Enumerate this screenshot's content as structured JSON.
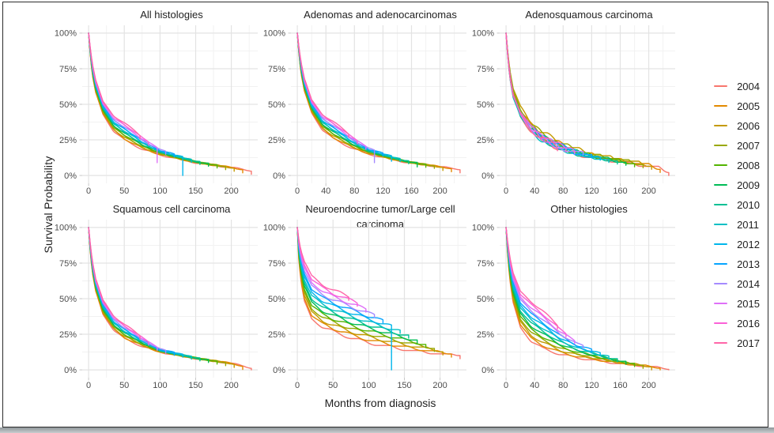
{
  "window": {
    "frame_border_color": "#2c2c2c",
    "bottom_edge_color": "#9aa0a4"
  },
  "chart_data": {
    "type": "line",
    "subtype": "kaplan-meier-survival-curves",
    "ylabel": "Survival Probability",
    "xlabel": "Months from diagnosis",
    "ylim": [
      0,
      100
    ],
    "xlim": [
      0,
      232
    ],
    "grid": true,
    "y_ticks": [
      0,
      25,
      50,
      75,
      100
    ],
    "y_tick_labels": [
      "0%",
      "25%",
      "50%",
      "75%",
      "100%"
    ],
    "legend_position": "right",
    "legend": {
      "entries": [
        {
          "label": "2004",
          "color": "#F8766D"
        },
        {
          "label": "2005",
          "color": "#E38900"
        },
        {
          "label": "2006",
          "color": "#C49A00"
        },
        {
          "label": "2007",
          "color": "#99A800"
        },
        {
          "label": "2008",
          "color": "#53B400"
        },
        {
          "label": "2009",
          "color": "#00BC56"
        },
        {
          "label": "2010",
          "color": "#00C094"
        },
        {
          "label": "2011",
          "color": "#00BFC4"
        },
        {
          "label": "2012",
          "color": "#00B6EB"
        },
        {
          "label": "2013",
          "color": "#06A4FF"
        },
        {
          "label": "2014",
          "color": "#A58AFF"
        },
        {
          "label": "2015",
          "color": "#DF70F8"
        },
        {
          "label": "2016",
          "color": "#FB61D7"
        },
        {
          "label": "2017",
          "color": "#FF66A8"
        }
      ]
    },
    "years": [
      2004,
      2005,
      2006,
      2007,
      2008,
      2009,
      2010,
      2011,
      2012,
      2013,
      2014,
      2015,
      2016,
      2017
    ],
    "end_month_by_year": [
      228,
      216,
      204,
      192,
      180,
      168,
      156,
      144,
      132,
      120,
      108,
      96,
      84,
      72
    ],
    "anchor_months": [
      0,
      2,
      5,
      10,
      20,
      35,
      50,
      75,
      100,
      150,
      200,
      228
    ],
    "encoding": "survival % anchors for earliest (2004) and latest (2017) cohorts; intermediate years interpolate between them by year weight",
    "panels": [
      {
        "title": "All histologies",
        "x_ticks": [
          0,
          50,
          100,
          150,
          200
        ],
        "survival_2004": [
          100,
          87,
          71,
          58,
          43,
          31,
          25,
          18.5,
          14.5,
          9,
          5.5,
          3.5
        ],
        "survival_2017": [
          100,
          91,
          79,
          67,
          52,
          42,
          37,
          27,
          19,
          11,
          6.5,
          4
        ],
        "noise": 0.5,
        "weights": null,
        "terminal_drops": [
          {
            "year": 2015,
            "to": 9
          },
          {
            "year": 2012,
            "to": 0
          }
        ]
      },
      {
        "title": "Adenomas and adenocarcinomas",
        "x_ticks": [
          0,
          40,
          80,
          120,
          160,
          200
        ],
        "survival_2004": [
          100,
          87,
          72,
          59,
          44,
          32,
          26,
          19.5,
          15,
          9.5,
          6,
          4.5
        ],
        "survival_2017": [
          100,
          91,
          80,
          68,
          53,
          43,
          38,
          28,
          20,
          11.5,
          7,
          5
        ],
        "noise": 0.5,
        "weights": null,
        "terminal_drops": [
          {
            "year": 2014,
            "to": 9
          },
          {
            "year": 2012,
            "to": 10
          },
          {
            "year": 2009,
            "to": 6
          },
          {
            "year": 2007,
            "to": 5
          }
        ]
      },
      {
        "title": "Adenosquamous carcinoma",
        "x_ticks": [
          0,
          40,
          80,
          120,
          160,
          200
        ],
        "survival_2004": [
          100,
          85,
          68,
          53,
          40,
          30,
          24,
          18.5,
          15,
          11,
          7.5,
          4
        ],
        "survival_2017": [
          100,
          89,
          75,
          61,
          48,
          37,
          30,
          23,
          18,
          13,
          8.5,
          4.5
        ],
        "noise": 2.2,
        "weights": [
          0.2,
          0.75,
          1,
          0.85,
          0.5,
          0.45,
          0.3,
          0.25,
          0.4,
          0.5,
          0.45,
          0.4,
          0.5,
          0.35
        ],
        "terminal_drops": []
      },
      {
        "title": "Squamous cell carcinoma",
        "x_ticks": [
          0,
          50,
          100,
          150,
          200
        ],
        "survival_2004": [
          100,
          85,
          69,
          55,
          39,
          28,
          22,
          16.5,
          12.5,
          8,
          4.5,
          1.5
        ],
        "survival_2017": [
          100,
          90,
          77,
          64,
          49,
          38,
          32,
          23,
          15,
          9,
          5,
          2
        ],
        "noise": 0.5,
        "weights": null,
        "terminal_drops": []
      },
      {
        "title": "Neuroendocrine tumor/Large cell carcinoma",
        "x_ticks": [
          0,
          50,
          100,
          150,
          200
        ],
        "survival_2004": [
          100,
          78,
          62,
          48,
          36,
          30,
          27,
          22.5,
          19,
          14.5,
          11.5,
          11
        ],
        "survival_2017": [
          100,
          92,
          84,
          76,
          66,
          60,
          56,
          51,
          46,
          36,
          25,
          18
        ],
        "noise": 1.0,
        "weights": null,
        "terminal_drops": [
          {
            "year": 2012,
            "to": 0
          }
        ]
      },
      {
        "title": "Other histologies",
        "x_ticks": [
          0,
          40,
          80,
          120,
          160,
          200
        ],
        "survival_2004": [
          100,
          83,
          64,
          47,
          30,
          20,
          15.5,
          11,
          8.5,
          5,
          2.5,
          1
        ],
        "survival_2017": [
          100,
          91,
          80,
          68,
          55,
          48,
          42,
          30,
          21,
          11,
          4,
          1.5
        ],
        "noise": 0.7,
        "weights": null,
        "terminal_drops": []
      }
    ]
  }
}
